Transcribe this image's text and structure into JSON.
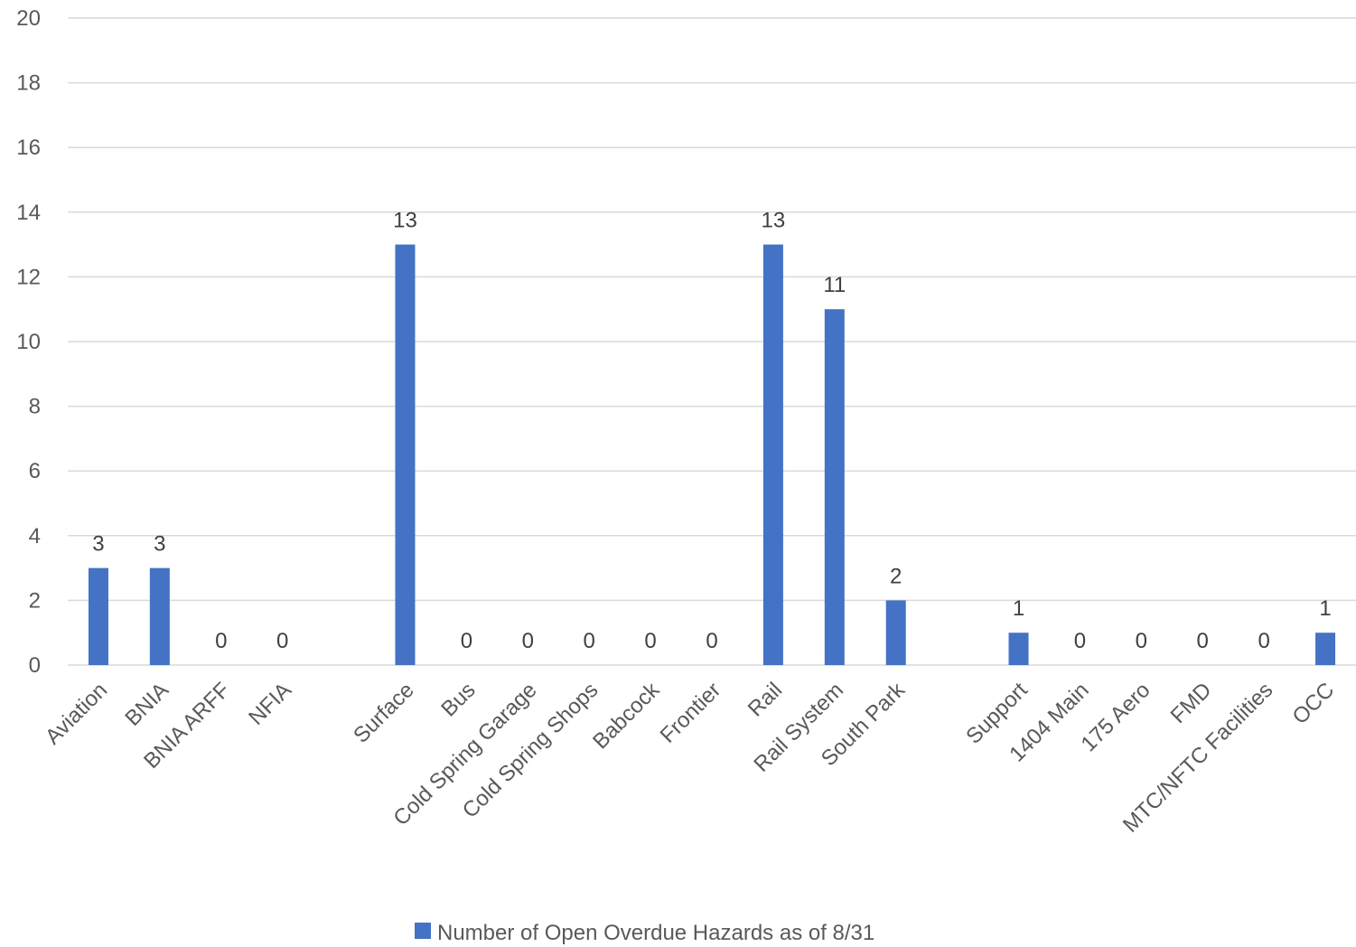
{
  "chart_data": {
    "type": "bar",
    "title": "",
    "xlabel": "",
    "ylabel": "",
    "ylim": [
      0,
      20
    ],
    "yticks": [
      0,
      2,
      4,
      6,
      8,
      10,
      12,
      14,
      16,
      18,
      20
    ],
    "grid": true,
    "legend_position": "bottom",
    "colors": {
      "bar": "#4472C4",
      "grid": "#D9D9D9"
    },
    "categories": [
      "Aviation",
      "BNIA",
      "BNIA ARFF",
      "NFIA",
      "",
      "Surface",
      "Bus",
      "Cold Spring Garage",
      "Cold Spring Shops",
      "Babcock",
      "Frontier",
      "Rail",
      "Rail System",
      "South Park",
      "",
      "Support",
      "1404 Main",
      "175 Aero",
      "FMD",
      "MTC/NFTC Facilities",
      "OCC"
    ],
    "series": [
      {
        "name": "Number of Open Overdue Hazards as of 8/31",
        "values": [
          3,
          3,
          0,
          0,
          null,
          13,
          0,
          0,
          0,
          0,
          0,
          13,
          11,
          2,
          null,
          1,
          0,
          0,
          0,
          0,
          1
        ]
      }
    ]
  }
}
